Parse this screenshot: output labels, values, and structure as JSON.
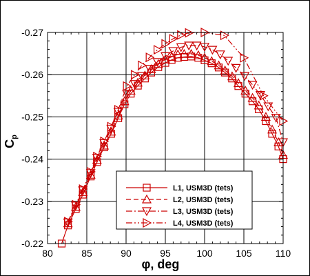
{
  "chart_data": {
    "type": "line",
    "title": "",
    "xlabel": "φ, deg",
    "ylabel_main": "C",
    "ylabel_sub": "p",
    "xlim": [
      80,
      110
    ],
    "ylim": [
      -0.22,
      -0.27
    ],
    "xticks": [
      80,
      85,
      90,
      95,
      100,
      105,
      110
    ],
    "xtick_labels": [
      "80",
      "85",
      "90",
      "95",
      "100",
      "105",
      "110"
    ],
    "yticks": [
      -0.22,
      -0.23,
      -0.24,
      -0.25,
      -0.26,
      -0.27
    ],
    "ytick_labels": [
      "-0.22",
      "-0.23",
      "-0.24",
      "-0.25",
      "-0.26",
      "-0.27"
    ],
    "grid": true,
    "legend_position": "lower-right",
    "colors": {
      "series": "#cc0000",
      "grid": "#000000",
      "frame": "#000000"
    },
    "series": [
      {
        "name": "L1, USM3D (tets)",
        "marker": "square",
        "dash": "solid",
        "x": [
          81.8,
          82.6,
          83.6,
          84.5,
          85.5,
          86.3,
          87.2,
          88.1,
          89.0,
          89.8,
          90.6,
          91.5,
          92.4,
          93.2,
          94.1,
          95.0,
          95.8,
          96.6,
          97.4,
          98.3,
          99.2,
          100.0,
          100.9,
          101.8,
          102.6,
          103.5,
          104.3,
          105.2,
          106.1,
          106.9,
          107.8,
          108.6,
          109.4,
          110.0
        ],
        "y": [
          -0.22,
          -0.2243,
          -0.2282,
          -0.2316,
          -0.2359,
          -0.2393,
          -0.2428,
          -0.246,
          -0.2497,
          -0.253,
          -0.2555,
          -0.2574,
          -0.2591,
          -0.2605,
          -0.2618,
          -0.2628,
          -0.2635,
          -0.264,
          -0.2642,
          -0.2643,
          -0.264,
          -0.2634,
          -0.2627,
          -0.2617,
          -0.2605,
          -0.2591,
          -0.2573,
          -0.2555,
          -0.2537,
          -0.2518,
          -0.249,
          -0.246,
          -0.243,
          -0.24
        ]
      },
      {
        "name": "L2, USM3D (tets)",
        "marker": "triangle-up",
        "dash": "dashed",
        "x": [
          82.6,
          83.6,
          84.5,
          85.5,
          86.3,
          87.2,
          88.1,
          89.0,
          89.8,
          90.6,
          91.5,
          92.4,
          93.2,
          94.1,
          95.0,
          95.8,
          96.6,
          97.4,
          98.3,
          99.2,
          100.0,
          100.9,
          101.8,
          102.6,
          103.5,
          104.3,
          105.2,
          106.1,
          106.9,
          107.8,
          108.6,
          109.4,
          110.0
        ],
        "y": [
          -0.2248,
          -0.2287,
          -0.2322,
          -0.2363,
          -0.2398,
          -0.2432,
          -0.2465,
          -0.2503,
          -0.2537,
          -0.2562,
          -0.2581,
          -0.2598,
          -0.2613,
          -0.2625,
          -0.2636,
          -0.2642,
          -0.2648,
          -0.2649,
          -0.2649,
          -0.2646,
          -0.264,
          -0.2632,
          -0.2622,
          -0.261,
          -0.2596,
          -0.258,
          -0.2562,
          -0.2545,
          -0.2527,
          -0.25,
          -0.247,
          -0.244,
          -0.241
        ]
      },
      {
        "name": "L3, USM3D (tets)",
        "marker": "triangle-down",
        "dash": "dashdot",
        "x": [
          82.6,
          83.6,
          84.5,
          85.5,
          86.3,
          87.2,
          88.1,
          89.0,
          90.1,
          91.1,
          92.0,
          93.0,
          94.0,
          95.0,
          96.0,
          97.0,
          98.0,
          99.0,
          100.0,
          101.0,
          102.0,
          103.0,
          104.0,
          105.1,
          106.1,
          107.1,
          108.1,
          109.1,
          110.0
        ],
        "y": [
          -0.225,
          -0.229,
          -0.2326,
          -0.2367,
          -0.2403,
          -0.2438,
          -0.2472,
          -0.2512,
          -0.2555,
          -0.2578,
          -0.2597,
          -0.2614,
          -0.263,
          -0.2644,
          -0.2656,
          -0.2665,
          -0.2669,
          -0.2669,
          -0.2666,
          -0.2659,
          -0.2648,
          -0.2633,
          -0.2616,
          -0.2597,
          -0.2576,
          -0.2552,
          -0.2525,
          -0.2498,
          -0.244
        ]
      },
      {
        "name": "L4, USM3D (tets)",
        "marker": "triangle-right",
        "dash": "dashdotdot",
        "x": [
          82.6,
          83.6,
          84.5,
          85.5,
          86.3,
          87.2,
          88.1,
          89.0,
          90.1,
          91.1,
          92.0,
          93.0,
          94.0,
          95.0,
          96.0,
          97.0,
          98.0,
          100.0,
          102.5,
          105.0,
          107.5,
          110.0
        ],
        "y": [
          -0.2252,
          -0.2292,
          -0.2329,
          -0.237,
          -0.2406,
          -0.2442,
          -0.2477,
          -0.2517,
          -0.2573,
          -0.26,
          -0.2622,
          -0.2641,
          -0.2659,
          -0.2673,
          -0.2685,
          -0.2694,
          -0.2699,
          -0.27,
          -0.2693,
          -0.264,
          -0.255,
          -0.249
        ]
      }
    ]
  }
}
